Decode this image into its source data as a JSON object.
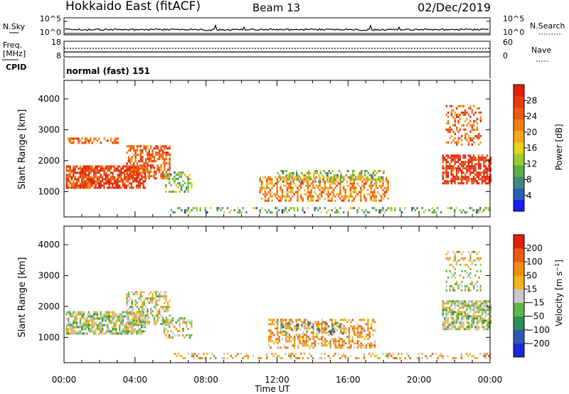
{
  "header": {
    "station": "Hokkaido East (fitACF)",
    "beam": "Beam 13",
    "date": "02/Dec/2019"
  },
  "noise_panel": {
    "left_label": "N.Sky",
    "right_label": "N.Search",
    "left_ticks": [
      "10^5",
      "10^0"
    ],
    "right_ticks": [
      "10^5",
      "10^0"
    ]
  },
  "freq_panel": {
    "left_label_1": "Freq.",
    "left_label_2": "[MHz]",
    "left_ticks": [
      "18",
      "8"
    ],
    "right_label": "Nave",
    "right_ticks": [
      "60",
      "0"
    ]
  },
  "cpid_panel": {
    "label": "CPID",
    "mode": "normal (fast) 151"
  },
  "chart_data": [
    {
      "type": "heatmap",
      "name": "power",
      "ylabel": "Slant Range [km]",
      "xlabel": "",
      "y_ticks": [
        1000,
        2000,
        3000,
        4000
      ],
      "ylim": [
        180,
        4600
      ],
      "xlim_hours": [
        0,
        24
      ],
      "colorbar": {
        "label": "Power [dB]",
        "ticks": [
          "4",
          "8",
          "12",
          "16",
          "20",
          "24",
          "28"
        ],
        "colors": [
          "#1a1aff",
          "#2a5fb8",
          "#3f8a7a",
          "#5cae4a",
          "#9ccd2f",
          "#e8d21a",
          "#f7a51a",
          "#f07d12",
          "#ec5a10",
          "#e83a0c",
          "#e31e0a"
        ]
      },
      "regions": [
        {
          "t": [
            0.1,
            4.6
          ],
          "r": [
            1150,
            1850
          ],
          "level": 0.85,
          "density": 0.8
        },
        {
          "t": [
            0.2,
            3.0
          ],
          "r": [
            2550,
            2750
          ],
          "level": 0.72,
          "density": 0.55
        },
        {
          "t": [
            3.5,
            6.0
          ],
          "r": [
            1400,
            2500
          ],
          "level": 0.75,
          "density": 0.65
        },
        {
          "t": [
            5.6,
            7.2
          ],
          "r": [
            1000,
            1650
          ],
          "level": 0.35,
          "density": 0.5
        },
        {
          "t": [
            11.0,
            18.3
          ],
          "r": [
            700,
            1500
          ],
          "level": 0.65,
          "density": 0.55
        },
        {
          "t": [
            12.0,
            18.0
          ],
          "r": [
            1300,
            1700
          ],
          "level": 0.35,
          "density": 0.45
        },
        {
          "t": [
            21.3,
            24.0
          ],
          "r": [
            1250,
            2200
          ],
          "level": 0.88,
          "density": 0.7
        },
        {
          "t": [
            21.5,
            23.5
          ],
          "r": [
            2500,
            3800
          ],
          "level": 0.72,
          "density": 0.4
        },
        {
          "t": [
            6.0,
            24.0
          ],
          "r": [
            300,
            500
          ],
          "level": 0.3,
          "density": 0.35
        }
      ]
    },
    {
      "type": "heatmap",
      "name": "velocity",
      "ylabel": "Slant Range [km]",
      "xlabel": "Time UT",
      "x_ticks": [
        "00:00",
        "04:00",
        "08:00",
        "12:00",
        "16:00",
        "20:00",
        "00:00"
      ],
      "y_ticks": [
        1000,
        2000,
        3000,
        4000
      ],
      "ylim": [
        180,
        4600
      ],
      "xlim_hours": [
        0,
        24
      ],
      "colorbar": {
        "label": "Velocity [m s^-1]",
        "ticks": [
          "200",
          "100",
          "50",
          "15",
          "-15",
          "-50",
          "-100",
          "-200"
        ],
        "colors": [
          "#1a2ad8",
          "#2c5bb0",
          "#2f8f55",
          "#5cb84a",
          "#c8c8c8",
          "#f2b21c",
          "#f08c12",
          "#ec5a10",
          "#e31e0a"
        ]
      },
      "regions": [
        {
          "t": [
            0.1,
            4.6
          ],
          "r": [
            1150,
            1850
          ],
          "level": 0.45,
          "density": 0.75
        },
        {
          "t": [
            3.5,
            6.0
          ],
          "r": [
            1400,
            2500
          ],
          "level": 0.5,
          "density": 0.55
        },
        {
          "t": [
            5.6,
            7.2
          ],
          "r": [
            1000,
            1650
          ],
          "level": 0.48,
          "density": 0.45
        },
        {
          "t": [
            11.5,
            17.5
          ],
          "r": [
            700,
            1600
          ],
          "level": 0.65,
          "density": 0.55
        },
        {
          "t": [
            12.2,
            15.8
          ],
          "r": [
            1100,
            1500
          ],
          "level": 0.25,
          "density": 0.3
        },
        {
          "t": [
            21.3,
            24.0
          ],
          "r": [
            1250,
            2200
          ],
          "level": 0.45,
          "density": 0.75
        },
        {
          "t": [
            21.5,
            23.5
          ],
          "r": [
            2500,
            3800
          ],
          "level": 0.5,
          "density": 0.35
        },
        {
          "t": [
            6.0,
            24.0
          ],
          "r": [
            300,
            500
          ],
          "level": 0.6,
          "density": 0.35
        }
      ]
    }
  ]
}
